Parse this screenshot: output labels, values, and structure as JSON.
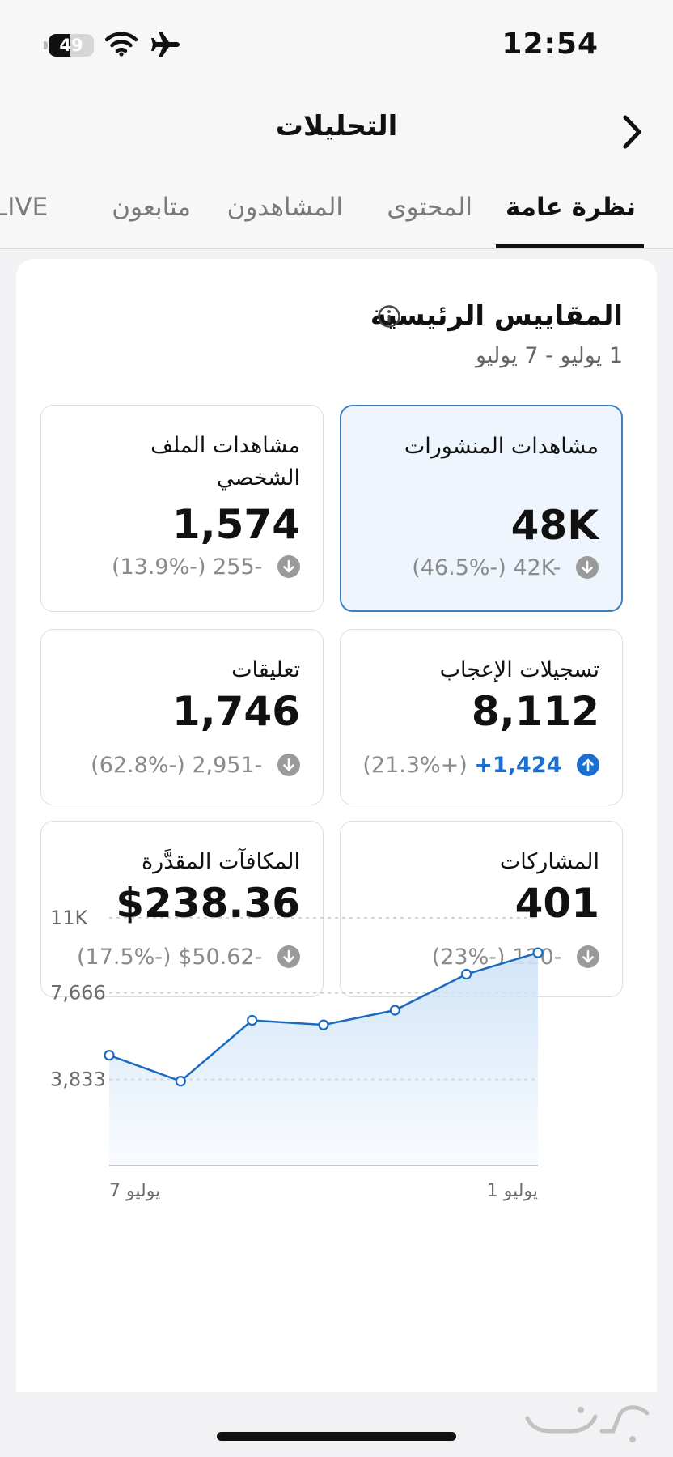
{
  "status_bar": {
    "time": "12:54",
    "battery_level": "49",
    "battery_fraction": 0.49,
    "icons": [
      "battery-icon",
      "wifi-icon",
      "airplane-icon"
    ]
  },
  "header": {
    "title": "التحليلات",
    "back_icon": "chevron-right-icon"
  },
  "tabs": [
    {
      "label": "نظرة عامة",
      "active": true
    },
    {
      "label": "المحتوى",
      "active": false
    },
    {
      "label": "المشاهدون",
      "active": false
    },
    {
      "label": "متابعون",
      "active": false
    },
    {
      "label": "LIVE",
      "active": false
    }
  ],
  "overview": {
    "title": "المقاييس الرئيسية",
    "info_icon": "info-icon",
    "date_range": "1 يوليو - 7 يوليو"
  },
  "metrics": [
    {
      "label": "مشاهدات المنشورات",
      "value": "48K",
      "change": "42K-",
      "percent": "(46.5%-)",
      "direction": "down",
      "selected": true
    },
    {
      "label": "مشاهدات الملف الشخصي",
      "value": "1,574",
      "change": "255-",
      "percent": "(13.9%-)",
      "direction": "down",
      "selected": false
    },
    {
      "label": "تسجيلات الإعجاب",
      "value": "8,112",
      "change": "+1,424",
      "percent": "(21.3%+)",
      "direction": "up",
      "selected": false
    },
    {
      "label": "تعليقات",
      "value": "1,746",
      "change": "2,951-",
      "percent": "(62.8%-)",
      "direction": "down",
      "selected": false
    },
    {
      "label": "المشاركات",
      "value": "401",
      "change": "120-",
      "percent": "(23%-)",
      "direction": "down",
      "selected": false
    },
    {
      "label": "المكافآت المقدَّرة",
      "value": "$238.36",
      "change": "$50.62-",
      "percent": "(17.5%-)",
      "direction": "down",
      "selected": false
    }
  ],
  "chart_data": {
    "type": "area",
    "x": [
      "7 يوليو",
      "",
      "",
      "",
      "",
      "",
      "1 يوليو"
    ],
    "x_tick_labels": [
      "يوليو 7",
      "يوليو 1"
    ],
    "y_tick_labels": [
      "11K",
      "7,666",
      "3,833"
    ],
    "values": [
      4900,
      3750,
      6450,
      6250,
      6900,
      8500,
      9450
    ],
    "ylim": [
      0,
      11500
    ],
    "y_ticks": [
      11000,
      7666,
      3833
    ],
    "grid": true,
    "line_color": "#1a6bbf",
    "fill_color": "#cfe3f7"
  },
  "colors": {
    "accent": "#1a6fd1",
    "selected_border": "#3d7fbf",
    "selected_bg": "#eef5fc",
    "muted": "#8a8a8a"
  }
}
